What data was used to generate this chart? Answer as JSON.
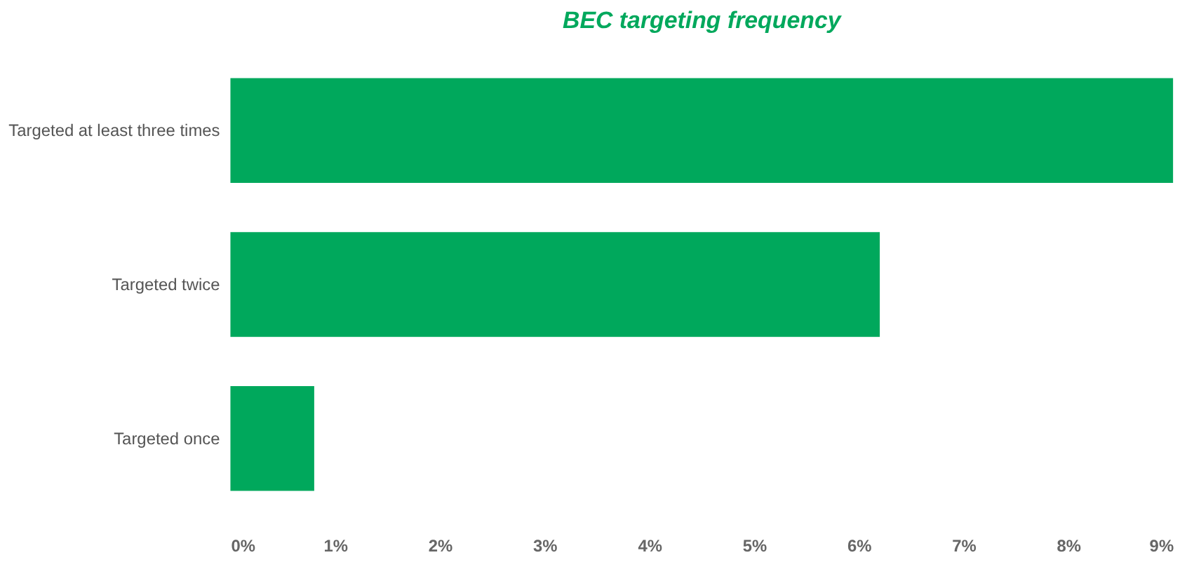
{
  "chart_data": {
    "type": "bar",
    "orientation": "horizontal",
    "title": "BEC targeting frequency",
    "categories": [
      "Targeted at least three times",
      "Targeted twice",
      "Targeted once"
    ],
    "values": [
      9.0,
      6.2,
      0.8
    ],
    "color": "#00a85c",
    "xlim": [
      0,
      9
    ],
    "xticks": [
      {
        "value": 0,
        "label": "0%"
      },
      {
        "value": 1,
        "label": "1%"
      },
      {
        "value": 2,
        "label": "2%"
      },
      {
        "value": 3,
        "label": "3%"
      },
      {
        "value": 4,
        "label": "4%"
      },
      {
        "value": 5,
        "label": "5%"
      },
      {
        "value": 6,
        "label": "6%"
      },
      {
        "value": 7,
        "label": "7%"
      },
      {
        "value": 8,
        "label": "8%"
      },
      {
        "value": 9,
        "label": "9%"
      }
    ],
    "grid": false
  }
}
